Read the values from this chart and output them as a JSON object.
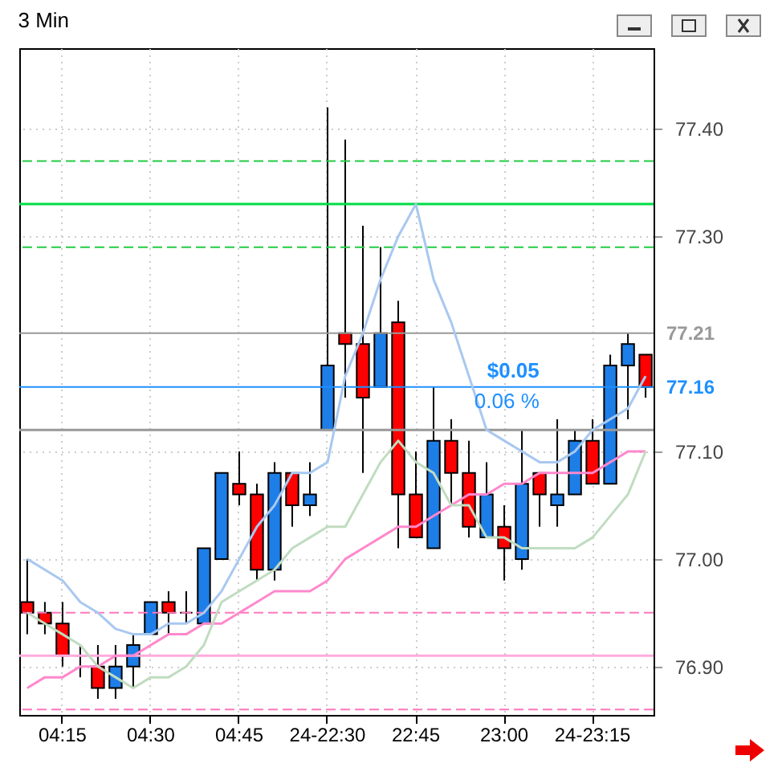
{
  "chart_data": {
    "type": "candlestick",
    "title": "3 Min",
    "categories": [
      null,
      null,
      "04:15",
      null,
      null,
      null,
      null,
      "04:30",
      null,
      null,
      null,
      null,
      "04:45",
      null,
      null,
      null,
      null,
      "24-22:30",
      null,
      null,
      null,
      null,
      "22:45",
      null,
      null,
      null,
      null,
      "23:00",
      null,
      null,
      null,
      null,
      "24-23:15",
      null,
      null,
      null
    ],
    "ohlc": [
      [
        76.96,
        77.0,
        76.93,
        76.95
      ],
      [
        76.95,
        76.96,
        76.93,
        76.94
      ],
      [
        76.94,
        76.96,
        76.9,
        76.91
      ],
      [
        76.91,
        76.92,
        76.89,
        76.91
      ],
      [
        76.9,
        76.92,
        76.87,
        76.88
      ],
      [
        76.88,
        76.92,
        76.87,
        76.9
      ],
      [
        76.9,
        76.93,
        76.88,
        76.92
      ],
      [
        76.93,
        76.96,
        76.93,
        76.96
      ],
      [
        76.96,
        76.97,
        76.93,
        76.95
      ],
      [
        76.95,
        76.97,
        76.94,
        76.95
      ],
      [
        76.94,
        77.01,
        76.94,
        77.01
      ],
      [
        77.0,
        77.08,
        77.0,
        77.08
      ],
      [
        77.07,
        77.1,
        77.05,
        77.06
      ],
      [
        77.06,
        77.07,
        76.98,
        76.99
      ],
      [
        76.99,
        77.09,
        76.98,
        77.08
      ],
      [
        77.08,
        77.08,
        77.03,
        77.05
      ],
      [
        77.05,
        77.09,
        77.04,
        77.06
      ],
      [
        77.12,
        77.42,
        77.12,
        77.18
      ],
      [
        77.21,
        77.39,
        77.15,
        77.2
      ],
      [
        77.2,
        77.31,
        77.08,
        77.15
      ],
      [
        77.16,
        77.29,
        77.16,
        77.21
      ],
      [
        77.22,
        77.24,
        77.01,
        77.06
      ],
      [
        77.06,
        77.1,
        77.02,
        77.02
      ],
      [
        77.01,
        77.16,
        77.01,
        77.11
      ],
      [
        77.11,
        77.13,
        77.05,
        77.08
      ],
      [
        77.08,
        77.11,
        77.02,
        77.03
      ],
      [
        77.02,
        77.09,
        77.02,
        77.06
      ],
      [
        77.03,
        77.05,
        76.98,
        77.01
      ],
      [
        77.0,
        77.12,
        76.99,
        77.07
      ],
      [
        77.08,
        77.08,
        77.03,
        77.06
      ],
      [
        77.05,
        77.13,
        77.03,
        77.06
      ],
      [
        77.06,
        77.12,
        77.06,
        77.11
      ],
      [
        77.11,
        77.13,
        77.07,
        77.07
      ],
      [
        77.07,
        77.19,
        77.07,
        77.18
      ],
      [
        77.18,
        77.21,
        77.13,
        77.2
      ],
      [
        77.19,
        77.19,
        77.15,
        77.16
      ]
    ],
    "colors": [
      "#ff0000",
      "#ff0000",
      "#ff0000",
      "#000000",
      "#ff0000",
      "#1e7ee8",
      "#1e7ee8",
      "#1e7ee8",
      "#ff0000",
      "#000000",
      "#1e7ee8",
      "#1e7ee8",
      "#ff0000",
      "#ff0000",
      "#1e7ee8",
      "#ff0000",
      "#1e7ee8",
      "#1e7ee8",
      "#ff0000",
      "#ff0000",
      "#1e7ee8",
      "#ff0000",
      "#ff0000",
      "#1e7ee8",
      "#ff0000",
      "#ff0000",
      "#1e7ee8",
      "#ff0000",
      "#1e7ee8",
      "#ff0000",
      "#1e7ee8",
      "#1e7ee8",
      "#ff0000",
      "#1e7ee8",
      "#1e7ee8",
      "#ff0000"
    ],
    "series": [
      {
        "type": "line",
        "color": "#ff88cc",
        "values": [
          76.88,
          76.89,
          76.89,
          76.9,
          76.9,
          76.91,
          76.91,
          76.92,
          76.93,
          76.93,
          76.94,
          76.94,
          76.95,
          76.96,
          76.97,
          76.97,
          76.97,
          76.98,
          77.0,
          77.01,
          77.02,
          77.03,
          77.03,
          77.04,
          77.05,
          77.06,
          77.06,
          77.07,
          77.07,
          77.08,
          77.08,
          77.08,
          77.08,
          77.09,
          77.1,
          77.1
        ]
      },
      {
        "type": "line",
        "color": "#c0dcc0",
        "values": [
          76.95,
          76.94,
          76.93,
          76.92,
          76.9,
          76.89,
          76.88,
          76.89,
          76.89,
          76.9,
          76.92,
          76.96,
          76.97,
          76.98,
          76.99,
          77.01,
          77.02,
          77.03,
          77.03,
          77.06,
          77.09,
          77.11,
          77.09,
          77.08,
          77.05,
          77.05,
          77.02,
          77.02,
          77.01,
          77.01,
          77.01,
          77.01,
          77.02,
          77.04,
          77.06,
          77.1
        ]
      },
      {
        "type": "line",
        "color": "#a8c8f0",
        "values": [
          77.0,
          76.99,
          76.98,
          76.96,
          76.95,
          76.935,
          76.93,
          76.93,
          76.94,
          76.94,
          76.95,
          76.97,
          77.0,
          77.03,
          77.05,
          77.08,
          77.08,
          77.09,
          77.17,
          77.21,
          77.26,
          77.3,
          77.33,
          77.26,
          77.22,
          77.17,
          77.12,
          77.11,
          77.1,
          77.09,
          77.09,
          77.1,
          77.12,
          77.13,
          77.14,
          77.17
        ]
      }
    ],
    "ylim": [
      76.855,
      77.475
    ],
    "yticks": [
      {
        "value": 76.9,
        "label": "76.90"
      },
      {
        "value": 77.0,
        "label": "77.00"
      },
      {
        "value": 77.1,
        "label": "77.10"
      },
      {
        "value": 77.3,
        "label": "77.30"
      },
      {
        "value": 77.4,
        "label": "77.40"
      }
    ],
    "ref_lines": [
      {
        "axis": "y",
        "value": 77.37,
        "color": "#22cc44",
        "line_style": "dashed"
      },
      {
        "axis": "y",
        "value": 77.33,
        "color": "#00dd44",
        "line_style": "solid"
      },
      {
        "axis": "y",
        "value": 77.29,
        "color": "#22cc44",
        "line_style": "dashed"
      },
      {
        "axis": "y",
        "value": 77.12,
        "color": "#999999",
        "line_style": "solid"
      },
      {
        "axis": "y",
        "value": 76.95,
        "color": "#ff77bb",
        "line_style": "dashed"
      },
      {
        "axis": "y",
        "value": 76.91,
        "color": "#ffaadd",
        "line_style": "solid"
      },
      {
        "axis": "y",
        "value": 76.86,
        "color": "#ff77bb",
        "line_style": "dashed"
      },
      {
        "axis": "y",
        "value": 77.21,
        "label": "77.21",
        "color": "#999999",
        "line_style": "solid"
      },
      {
        "axis": "y",
        "value": 77.16,
        "label": "77.16",
        "color": "#1e90ff",
        "line_style": "solid"
      }
    ],
    "annotations": [
      "$0.05",
      "0.06 %"
    ],
    "grid": true
  }
}
